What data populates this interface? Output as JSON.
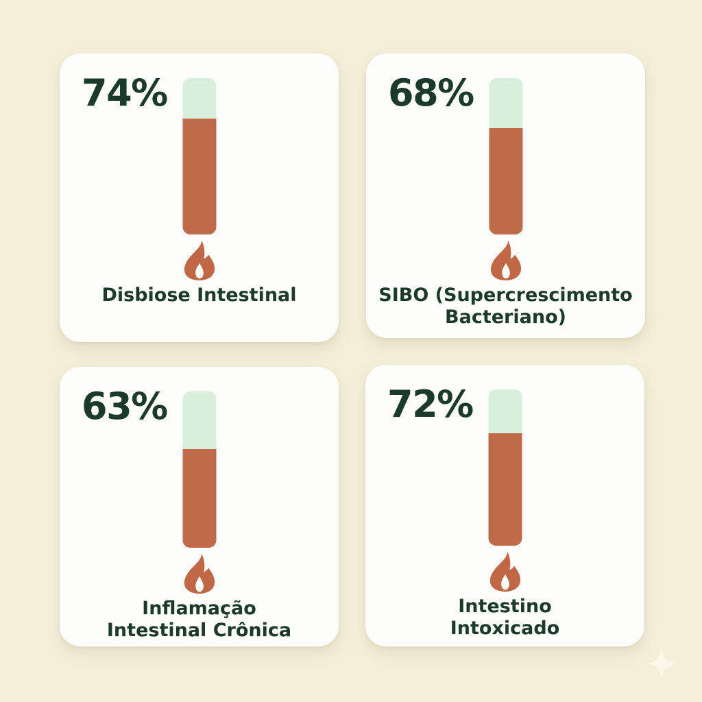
{
  "chart_data": {
    "type": "bar",
    "unit": "%",
    "categories": [
      "Disbiose Intestinal",
      "SIBO (Supercrescimento Bacteriano)",
      "Inflamação Intestinal Crônica",
      "Intestino Intoxicado"
    ],
    "values": [
      74,
      68,
      63,
      72
    ],
    "title": "",
    "xlabel": "",
    "ylabel": "",
    "ylim": [
      0,
      100
    ],
    "legend": false,
    "grid": false
  },
  "cards": [
    {
      "percent": "74%",
      "value": 74,
      "label": "Disbiose Intestinal",
      "label_display": "Disbiose Intestinal"
    },
    {
      "percent": "68%",
      "value": 68,
      "label": "SIBO (Supercrescimento Bacteriano)",
      "label_display": "SIBO (Supercrescimento\nBacteriano)"
    },
    {
      "percent": "63%",
      "value": 63,
      "label": "Inflamação Intestinal Crônica",
      "label_display": "Inflamação\nIntestinal Crônica"
    },
    {
      "percent": "72%",
      "value": 72,
      "label": "Intestino Intoxicado",
      "label_display": "Intestino\nIntoxicado"
    }
  ],
  "colors": {
    "background": "#f5efd9",
    "card": "#fdfdfb",
    "bar_track": "#d8efdc",
    "bar_fill": "#bf6b49",
    "flame": "#c06845",
    "text": "#1c3a29",
    "sparkle": "#fcf8e9"
  }
}
